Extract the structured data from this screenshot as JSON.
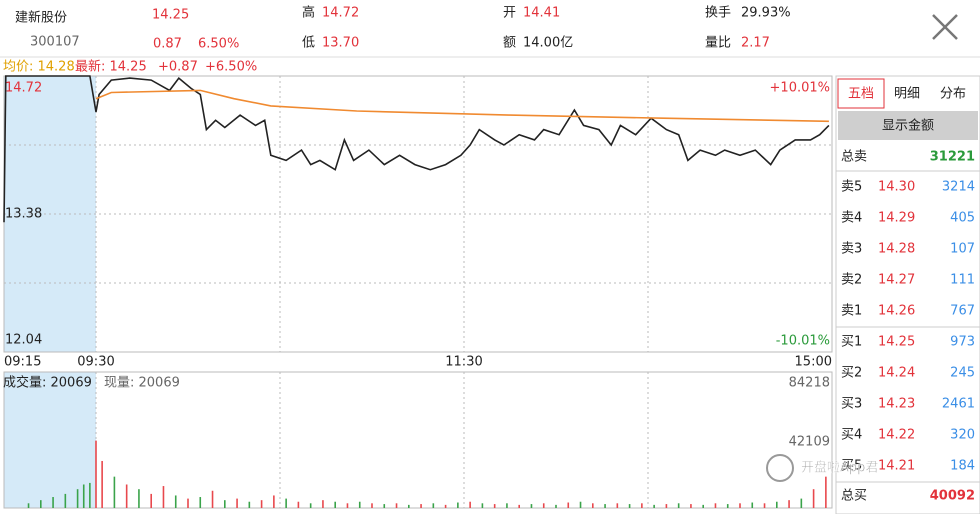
{
  "header": {
    "name": "建新股份",
    "code": "300107",
    "price": "14.25",
    "change": "0.87",
    "change_pct": "6.50%",
    "high_label": "高",
    "high": "14.72",
    "low_label": "低",
    "low": "13.70",
    "open_label": "开",
    "open": "14.41",
    "amount_label": "额",
    "amount": "14.00亿",
    "turnover_label": "换手",
    "turnover": "29.93%",
    "ratio_label": "量比",
    "ratio": "2.17"
  },
  "info": {
    "avg": "均价: 14.28",
    "latest": "最新: 14.25",
    "change": "+0.87",
    "change_pct": "+6.50%"
  },
  "chart_data": {
    "type": "line",
    "xlim": [
      0,
      255
    ],
    "xticks": [
      {
        "value": 0,
        "label": "09:15"
      },
      {
        "value": 15,
        "label": "09:30"
      },
      {
        "value": 135,
        "label": "11:30"
      },
      {
        "value": 255,
        "label": "15:00"
      }
    ],
    "xgrid": [
      15,
      75,
      135,
      195
    ],
    "ylim": [
      12.04,
      14.72
    ],
    "yticks": [
      12.04,
      13.38,
      14.72
    ],
    "ygrid": [
      12.71,
      13.38,
      14.05
    ],
    "right_labels": {
      "top": "+10.01%",
      "bottom": "-10.01%"
    },
    "series": [
      {
        "color": "#222222",
        "x": [
          0,
          0.3,
          12,
          14,
          15,
          16,
          20,
          26,
          33,
          39,
          42,
          46,
          49,
          51,
          54,
          57,
          62,
          67,
          70,
          72,
          77,
          82,
          85,
          88,
          93,
          96,
          99,
          104,
          109,
          114,
          119,
          124,
          129,
          134,
          137,
          140,
          145,
          148,
          153,
          158,
          161,
          166,
          171,
          174,
          179,
          183,
          186,
          191,
          196,
          201,
          205,
          208,
          212,
          217,
          220,
          225,
          230,
          235,
          238,
          243,
          248,
          251,
          254
        ],
        "values": [
          13.3,
          14.72,
          14.72,
          14.72,
          14.37,
          14.54,
          14.68,
          14.7,
          14.68,
          14.58,
          14.7,
          14.6,
          14.54,
          14.2,
          14.29,
          14.22,
          14.34,
          14.24,
          14.29,
          13.95,
          13.9,
          14.0,
          13.86,
          13.9,
          13.81,
          14.1,
          13.9,
          14.0,
          13.86,
          13.95,
          13.86,
          13.81,
          13.86,
          13.95,
          14.05,
          14.2,
          14.1,
          14.05,
          14.15,
          14.1,
          14.2,
          14.15,
          14.39,
          14.24,
          14.2,
          14.05,
          14.24,
          14.15,
          14.31,
          14.2,
          14.15,
          13.9,
          14.0,
          13.95,
          14.0,
          13.95,
          14.0,
          13.86,
          14.0,
          14.1,
          14.1,
          14.15,
          14.24
        ]
      },
      {
        "color": "#f08a30",
        "x": [
          15,
          20,
          49,
          60,
          72,
          100,
          150,
          200,
          254
        ],
        "values": [
          14.5,
          14.56,
          14.58,
          14.5,
          14.43,
          14.38,
          14.34,
          14.31,
          14.28
        ]
      }
    ]
  },
  "volume": {
    "type": "bar",
    "label": "成交量: 20069",
    "current": "现量: 20069",
    "ylim": [
      0,
      84218
    ],
    "yticks": [
      42109,
      84218
    ],
    "series": [
      {
        "color": "#e8484d",
        "x": [
          15,
          17,
          25,
          33,
          37,
          45,
          53,
          61,
          69,
          73,
          81,
          89,
          97,
          105,
          113,
          121,
          129,
          137,
          145,
          153,
          161,
          169,
          177,
          185,
          193,
          201,
          209,
          217,
          225,
          233,
          241,
          249,
          253
        ],
        "values": [
          43000,
          30000,
          15000,
          9000,
          14000,
          6000,
          11000,
          6000,
          5000,
          8000,
          4000,
          5000,
          3000,
          3000,
          3000,
          2500,
          2000,
          4000,
          2500,
          2000,
          3000,
          3500,
          3000,
          3000,
          3000,
          2500,
          2500,
          3000,
          3000,
          3000,
          5000,
          12000,
          20000
        ]
      },
      {
        "color": "#3aa34a",
        "x": [
          4,
          6,
          8,
          10,
          12,
          13,
          14,
          21,
          29,
          41,
          49,
          57,
          65,
          77,
          85,
          93,
          101,
          109,
          117,
          125,
          133,
          141,
          149,
          157,
          165,
          173,
          181,
          189,
          197,
          205,
          213,
          221,
          229,
          237,
          245
        ],
        "values": [
          3000,
          5000,
          7000,
          9000,
          12000,
          15000,
          16000,
          20000,
          12000,
          8000,
          7000,
          5000,
          4000,
          6000,
          3000,
          4000,
          4000,
          2500,
          2000,
          3000,
          3500,
          3000,
          3000,
          2500,
          2000,
          4000,
          2500,
          2500,
          2000,
          3000,
          2000,
          2500,
          3500,
          4000,
          6000
        ]
      }
    ]
  },
  "order_book": {
    "tabs": [
      "五档",
      "明细",
      "分布"
    ],
    "button": "显示金额",
    "total_sell_label": "总卖",
    "total_sell": "31221",
    "asks": [
      {
        "label": "卖5",
        "price": "14.30",
        "volume": "3214"
      },
      {
        "label": "卖4",
        "price": "14.29",
        "volume": "405"
      },
      {
        "label": "卖3",
        "price": "14.28",
        "volume": "107"
      },
      {
        "label": "卖2",
        "price": "14.27",
        "volume": "111"
      },
      {
        "label": "卖1",
        "price": "14.26",
        "volume": "767"
      }
    ],
    "bids": [
      {
        "label": "买1",
        "price": "14.25",
        "volume": "973"
      },
      {
        "label": "买2",
        "price": "14.24",
        "volume": "245"
      },
      {
        "label": "买3",
        "price": "14.23",
        "volume": "2461"
      },
      {
        "label": "买4",
        "price": "14.22",
        "volume": "320"
      },
      {
        "label": "买5",
        "price": "14.21",
        "volume": "184"
      }
    ],
    "total_buy_label": "总买",
    "total_buy": "40092"
  },
  "watermark": "开盘啦App君"
}
